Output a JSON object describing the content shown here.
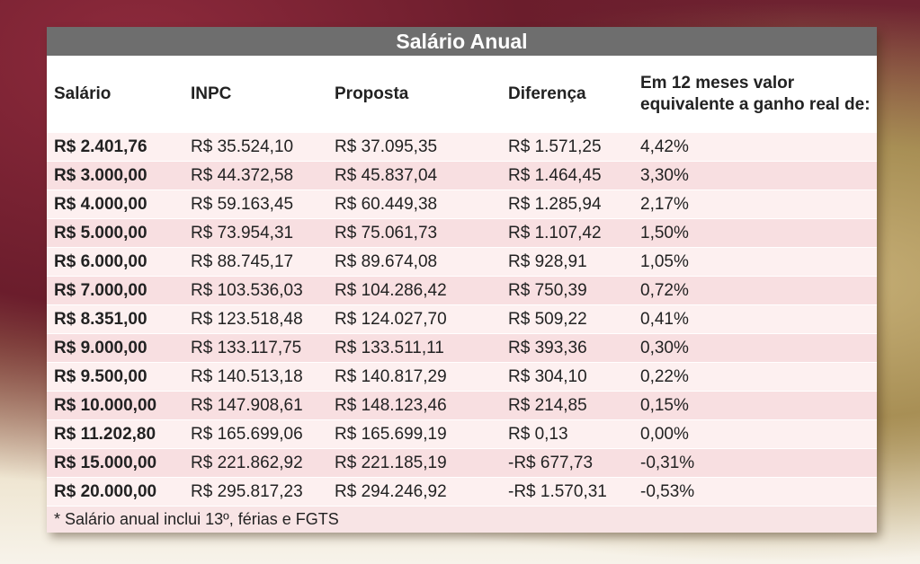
{
  "header": {
    "title": "Salário Anual"
  },
  "table": {
    "columns": [
      "Salário",
      "INPC",
      "Proposta",
      "Diferença",
      "Em 12 meses valor equivalente a ganho real de:"
    ],
    "rows": [
      [
        "R$ 2.401,76",
        "R$ 35.524,10",
        "R$ 37.095,35",
        "R$ 1.571,25",
        "4,42%"
      ],
      [
        "R$ 3.000,00",
        "R$ 44.372,58",
        "R$ 45.837,04",
        "R$ 1.464,45",
        "3,30%"
      ],
      [
        "R$ 4.000,00",
        "R$ 59.163,45",
        "R$ 60.449,38",
        "R$ 1.285,94",
        "2,17%"
      ],
      [
        "R$ 5.000,00",
        "R$ 73.954,31",
        "R$ 75.061,73",
        "R$ 1.107,42",
        "1,50%"
      ],
      [
        "R$ 6.000,00",
        "R$ 88.745,17",
        "R$ 89.674,08",
        "R$ 928,91",
        "1,05%"
      ],
      [
        "R$ 7.000,00",
        "R$ 103.536,03",
        "R$ 104.286,42",
        "R$ 750,39",
        "0,72%"
      ],
      [
        "R$ 8.351,00",
        "R$ 123.518,48",
        "R$ 124.027,70",
        "R$ 509,22",
        "0,41%"
      ],
      [
        "R$ 9.000,00",
        "R$ 133.117,75",
        "R$ 133.511,11",
        "R$ 393,36",
        "0,30%"
      ],
      [
        "R$ 9.500,00",
        "R$ 140.513,18",
        "R$ 140.817,29",
        "R$ 304,10",
        "0,22%"
      ],
      [
        "R$ 10.000,00",
        "R$ 147.908,61",
        "R$ 148.123,46",
        "R$ 214,85",
        "0,15%"
      ],
      [
        "R$ 11.202,80",
        "R$ 165.699,06",
        "R$ 165.699,19",
        "R$ 0,13",
        "0,00%"
      ],
      [
        "R$ 15.000,00",
        "R$ 221.862,92",
        "R$ 221.185,19",
        "-R$ 677,73",
        "-0,31%"
      ],
      [
        "R$ 20.000,00",
        "R$ 295.817,23",
        "R$ 294.246,92",
        "-R$ 1.570,31",
        "-0,53%"
      ]
    ]
  },
  "footnote": "* Salário anual inclui 13º, férias e FGTS"
}
